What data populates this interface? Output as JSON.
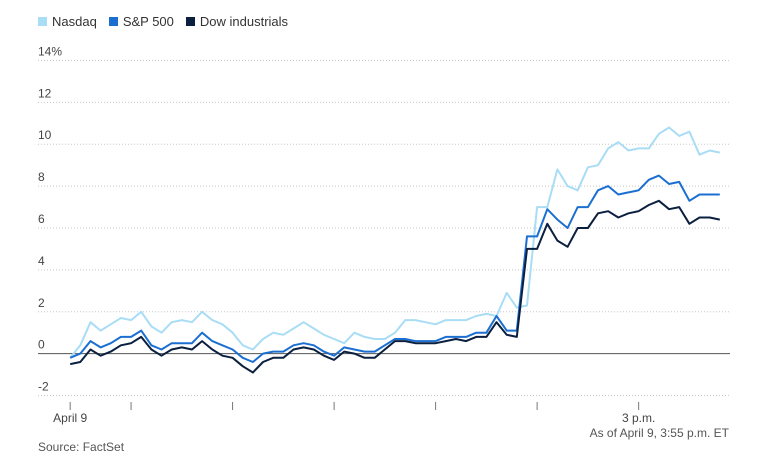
{
  "chart_data": {
    "type": "line",
    "x": [
      0,
      1,
      2,
      3,
      4,
      5,
      6,
      7,
      8,
      9,
      10,
      11,
      12,
      13,
      14,
      15,
      16,
      17,
      18,
      19,
      20,
      21,
      22,
      23,
      24,
      25,
      26,
      27,
      28,
      29,
      30,
      31,
      32,
      33,
      34,
      35,
      36,
      37,
      38,
      39,
      40,
      41,
      42,
      43,
      44,
      45,
      46,
      47,
      48,
      49,
      50,
      51,
      52,
      53,
      54,
      55,
      56,
      57,
      58,
      59,
      60,
      61,
      62,
      63,
      64
    ],
    "x_ticks": [
      {
        "x": 0,
        "label": "April 9"
      },
      {
        "x": 6,
        "label": ""
      },
      {
        "x": 16,
        "label": ""
      },
      {
        "x": 26,
        "label": ""
      },
      {
        "x": 36,
        "label": ""
      },
      {
        "x": 46,
        "label": ""
      },
      {
        "x": 56,
        "label": "3 p.m."
      }
    ],
    "xlim": [
      -1,
      65
    ],
    "ylim": [
      -2.5,
      14.5
    ],
    "y_ticks": [
      {
        "value": 14,
        "label": "14%"
      },
      {
        "value": 12,
        "label": "12"
      },
      {
        "value": 10,
        "label": "10"
      },
      {
        "value": 8,
        "label": "8"
      },
      {
        "value": 6,
        "label": "6"
      },
      {
        "value": 4,
        "label": "4"
      },
      {
        "value": 2,
        "label": "2"
      },
      {
        "value": 0,
        "label": "0"
      },
      {
        "value": -2,
        "label": "-2"
      }
    ],
    "grid": "horizontal dotted",
    "legend_position": "top-left",
    "series": [
      {
        "name": "Nasdaq",
        "color": "#a9ddf5",
        "values": [
          -0.2,
          0.4,
          1.5,
          1.1,
          1.4,
          1.7,
          1.6,
          2.0,
          1.3,
          1.0,
          1.5,
          1.6,
          1.5,
          2.0,
          1.6,
          1.4,
          1.0,
          0.4,
          0.2,
          0.7,
          1.0,
          0.9,
          1.2,
          1.5,
          1.2,
          0.9,
          0.7,
          0.5,
          1.0,
          0.8,
          0.7,
          0.7,
          1.0,
          1.6,
          1.6,
          1.5,
          1.4,
          1.6,
          1.6,
          1.6,
          1.8,
          1.9,
          1.8,
          2.9,
          2.2,
          2.3,
          7.0,
          7.0,
          8.8,
          8.0,
          7.8,
          8.9,
          9.0,
          9.8,
          10.1,
          9.7,
          9.8,
          9.8,
          10.5,
          10.8,
          10.4,
          10.6,
          9.5,
          9.7,
          9.6
        ]
      },
      {
        "name": "S&P 500",
        "color": "#1b6fd1",
        "values": [
          -0.2,
          0.0,
          0.6,
          0.3,
          0.5,
          0.8,
          0.8,
          1.1,
          0.4,
          0.2,
          0.5,
          0.5,
          0.5,
          1.0,
          0.6,
          0.4,
          0.2,
          -0.2,
          -0.4,
          0.0,
          0.1,
          0.1,
          0.4,
          0.5,
          0.4,
          0.1,
          -0.1,
          0.3,
          0.2,
          0.1,
          0.1,
          0.4,
          0.7,
          0.7,
          0.6,
          0.6,
          0.6,
          0.8,
          0.8,
          0.8,
          1.0,
          1.0,
          1.8,
          1.1,
          1.1,
          5.6,
          5.6,
          6.9,
          6.4,
          6.0,
          7.0,
          7.0,
          7.8,
          8.0,
          7.6,
          7.7,
          7.8,
          8.3,
          8.5,
          8.1,
          8.2,
          7.3,
          7.6,
          7.6,
          7.6
        ]
      },
      {
        "name": "Dow industrials",
        "color": "#0b1f3f",
        "values": [
          -0.5,
          -0.4,
          0.2,
          -0.1,
          0.1,
          0.4,
          0.5,
          0.8,
          0.2,
          -0.1,
          0.2,
          0.3,
          0.2,
          0.6,
          0.2,
          -0.1,
          -0.2,
          -0.6,
          -0.9,
          -0.4,
          -0.2,
          -0.2,
          0.2,
          0.3,
          0.2,
          -0.1,
          -0.3,
          0.1,
          0.0,
          -0.2,
          -0.2,
          0.2,
          0.6,
          0.6,
          0.5,
          0.5,
          0.5,
          0.6,
          0.7,
          0.6,
          0.8,
          0.8,
          1.5,
          0.9,
          0.8,
          5.0,
          5.0,
          6.2,
          5.4,
          5.1,
          6.0,
          6.0,
          6.7,
          6.8,
          6.5,
          6.7,
          6.8,
          7.1,
          7.3,
          6.9,
          7.0,
          6.2,
          6.5,
          6.5,
          6.4
        ]
      }
    ],
    "source": "Source: FactSet",
    "note": "As of April 9, 3:55 p.m. ET"
  },
  "legend": [
    {
      "label": "Nasdaq",
      "color": "#a9ddf5"
    },
    {
      "label": "S&P 500",
      "color": "#1b6fd1"
    },
    {
      "label": "Dow industrials",
      "color": "#0b1f3f"
    }
  ]
}
